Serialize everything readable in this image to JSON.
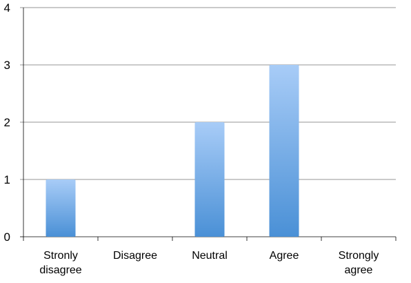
{
  "chart_data": {
    "type": "bar",
    "categories": [
      "Stronly disagree",
      "Disagree",
      "Neutral",
      "Agree",
      "Strongly agree"
    ],
    "category_lines": [
      [
        "Stronly",
        "disagree"
      ],
      [
        "Disagree"
      ],
      [
        "Neutral"
      ],
      [
        "Agree"
      ],
      [
        "Strongly",
        "agree"
      ]
    ],
    "values": [
      1,
      0,
      2,
      3,
      0
    ],
    "y_ticks": [
      "0",
      "1",
      "2",
      "3",
      "4"
    ],
    "ylim": [
      0,
      4
    ],
    "grid": true,
    "legend": "none",
    "title": "",
    "xlabel": "",
    "ylabel": "",
    "bar_color_top": "#a8ccf7",
    "bar_color_bottom": "#4a90d6",
    "grid_color": "#000000"
  }
}
